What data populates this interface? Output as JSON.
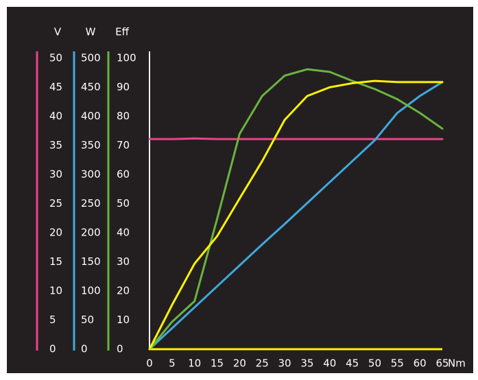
{
  "chart_data": {
    "type": "line",
    "x": [
      0,
      5,
      10,
      15,
      20,
      25,
      30,
      35,
      40,
      45,
      50,
      55,
      60,
      65
    ],
    "xlim": [
      0,
      65
    ],
    "xticks": [
      0,
      5,
      10,
      15,
      20,
      25,
      30,
      35,
      40,
      45,
      50,
      55,
      60,
      65
    ],
    "x_label": "Nm",
    "y_axes": [
      {
        "label": "V",
        "color": "#e8458b",
        "lim": [
          0,
          50
        ],
        "ticks": [
          0,
          5,
          10,
          15,
          20,
          25,
          30,
          35,
          40,
          45,
          50
        ]
      },
      {
        "label": "W",
        "color": "#3fa9e0",
        "lim": [
          0,
          500
        ],
        "ticks": [
          0,
          50,
          100,
          150,
          200,
          250,
          300,
          350,
          400,
          450,
          500
        ]
      },
      {
        "label": "Eff",
        "color": "#6ab43e",
        "lim": [
          0,
          100
        ],
        "ticks": [
          0,
          10,
          20,
          30,
          40,
          50,
          60,
          70,
          80,
          90,
          100
        ]
      }
    ],
    "series": [
      {
        "axis": 0,
        "color": "#e8458b",
        "values": [
          36.1,
          36.1,
          36.2,
          36.1,
          36.1,
          36.1,
          36.1,
          36.1,
          36.1,
          36.1,
          36.1,
          36.1,
          36.1,
          36.1
        ]
      },
      {
        "axis": 1,
        "color": "#3fa9e0",
        "values": [
          0,
          36,
          72,
          108,
          144,
          180,
          215,
          251,
          287,
          323,
          359,
          406,
          435,
          459
        ]
      },
      {
        "axis": 2,
        "color": "#6ab43e",
        "values": [
          0,
          9.4,
          16.5,
          44.7,
          74,
          87,
          94,
          96.2,
          95.3,
          92.2,
          89.4,
          85.9,
          81.2,
          75.8
        ]
      },
      {
        "axis": 1,
        "color": "#fff200",
        "values": [
          0,
          76,
          147,
          194,
          259,
          323,
          394,
          435,
          450,
          457,
          461,
          459,
          459,
          459
        ]
      }
    ]
  }
}
